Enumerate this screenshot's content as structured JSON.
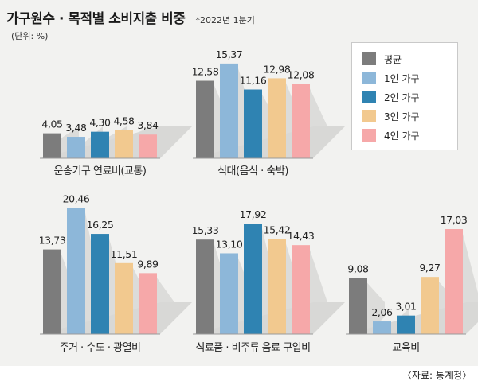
{
  "header": {
    "title": "가구원수 · 목적별 소비지출 비중",
    "period": "*2022년 1분기",
    "unit": "(단위: %)"
  },
  "source": "〈자료: 통계청〉",
  "colors": {
    "평균": "#7c7c7c",
    "1인 가구": "#8db7d9",
    "2인 가구": "#2f83b2",
    "3인 가구": "#f2c98f",
    "4인 가구": "#f6a8a9",
    "shadow": "#d8d8d6"
  },
  "chart_data": {
    "type": "bar",
    "series_names": [
      "평균",
      "1인 가구",
      "2인 가구",
      "3인 가구",
      "4인 가구"
    ],
    "legend_position": "top-right",
    "groups": [
      {
        "category": "운송기구 연료비(교통)",
        "values": [
          4.05,
          3.48,
          4.3,
          4.58,
          3.84
        ],
        "labels": [
          "4,05",
          "3,48",
          "4,30",
          "4,58",
          "3,84"
        ]
      },
      {
        "category": "식대(음식 · 숙박)",
        "values": [
          12.58,
          15.37,
          11.16,
          12.98,
          12.08
        ],
        "labels": [
          "12,58",
          "15,37",
          "11,16",
          "12,98",
          "12,08"
        ]
      },
      {
        "category": "주거 · 수도 · 광열비",
        "values": [
          13.73,
          20.46,
          16.25,
          11.51,
          9.89
        ],
        "labels": [
          "13,73",
          "20,46",
          "16,25",
          "11,51",
          "9,89"
        ]
      },
      {
        "category": "식료품 · 비주류 음료 구입비",
        "values": [
          15.33,
          13.1,
          17.92,
          15.42,
          14.43
        ],
        "labels": [
          "15,33",
          "13,10",
          "17,92",
          "15,42",
          "14,43"
        ]
      },
      {
        "category": "교육비",
        "values": [
          9.08,
          2.06,
          3.01,
          9.27,
          17.03
        ],
        "labels": [
          "9,08",
          "2,06",
          "3,01",
          "9,27",
          "17,03"
        ]
      }
    ]
  }
}
